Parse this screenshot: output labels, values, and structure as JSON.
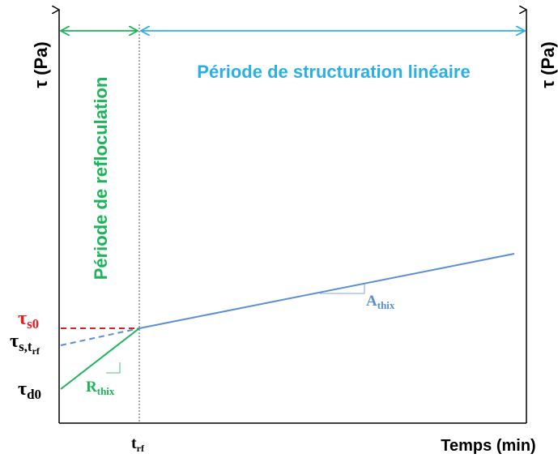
{
  "axes": {
    "y_label_left": "τ (Pa)",
    "y_label_right": "τ (Pa)",
    "x_label": "Temps (min)"
  },
  "periods": {
    "refloculation": "Période de refloculation",
    "structuration": "Période de structuration linéaire"
  },
  "labels": {
    "tau_s0": {
      "symbol": "τ",
      "sub": "s0"
    },
    "tau_s_trf": {
      "symbol": "τ",
      "sub": "s,t",
      "subsub": "rf"
    },
    "tau_d0": {
      "symbol": "τ",
      "sub": "d0"
    },
    "r_thix": {
      "symbol": "R",
      "sub": "thix"
    },
    "a_thix": {
      "symbol": "A",
      "sub": "thix"
    },
    "t_rf": {
      "symbol": "t",
      "sub": "rf"
    }
  }
}
